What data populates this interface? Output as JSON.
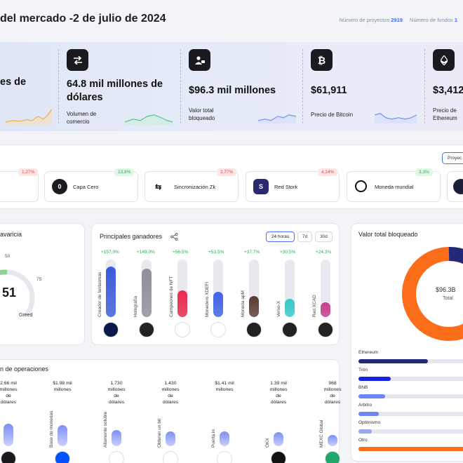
{
  "header": {
    "title": "del mercado -2 de julio de 2024",
    "projects_label": "Número de proyectos",
    "projects_count": "2919",
    "funds_label": "Número de fondos",
    "funds_count": "1"
  },
  "stats": [
    {
      "value": "es de",
      "label": "",
      "icon": "unknown",
      "spark_color": "#e9a84a"
    },
    {
      "value": "64.8 mil millones de dólares",
      "label": "Volumen de comercio",
      "icon": "swap-arrows-icon",
      "spark_color": "#3cba7a"
    },
    {
      "value": "$96.3 mil millones",
      "label": "Valor total bloqueado",
      "icon": "user-lock-icon",
      "spark_color": "#5b7cf2"
    },
    {
      "value": "$61,911",
      "label": "Precio de Bitcoin",
      "icon": "bitcoin-icon",
      "spark_color": "#5b7cf2"
    },
    {
      "value": "$3,412",
      "label": "Precio de Ethereum",
      "icon": "ethereum-icon",
      "spark_color": "#5b7cf2"
    }
  ],
  "trending": {
    "button": "Proyec",
    "coins": [
      {
        "name": "",
        "pct": "1,27%",
        "dir": "down"
      },
      {
        "name": "Capa Cero",
        "pct": "13,9%",
        "dir": "up"
      },
      {
        "name": "Sincronización Zk",
        "pct": "2,77%",
        "dir": "down"
      },
      {
        "name": "Red Stork",
        "pct": "4,24%",
        "dir": "down"
      },
      {
        "name": "Moneda mundial",
        "pct": "3,3%",
        "dir": "up"
      }
    ]
  },
  "fear_greed": {
    "title": "avaricia",
    "value": "51",
    "label": "Greed",
    "tick_50": "50",
    "tick_75": "75"
  },
  "gainers": {
    "title": "Principales ganadores",
    "timeframes": [
      "24 horas",
      "7d",
      "30d"
    ],
    "active_timeframe": "24 horas",
    "items": [
      {
        "name": "Creador de fantasmas",
        "pct": "+157,0%",
        "fill": 0.88,
        "color": "#3b5bdb"
      },
      {
        "name": "Holografía",
        "pct": "+149,0%",
        "fill": 0.84,
        "color": "#8e9096"
      },
      {
        "name": "Campeones de NFT",
        "pct": "+56,5%",
        "fill": 0.46,
        "color": "#e8284c"
      },
      {
        "name": "Monedero XDEFI",
        "pct": "+53,5%",
        "fill": 0.44,
        "color": "#3f63e6"
      },
      {
        "name": "Moneda apM",
        "pct": "+37,7%",
        "fill": 0.36,
        "color": "#5a3b33"
      },
      {
        "name": "Verso-X",
        "pct": "+30,5%",
        "fill": 0.32,
        "color": "#35c9c9"
      },
      {
        "name": "Red XCAD",
        "pct": "+24,3%",
        "fill": 0.26,
        "color": "#c93a8a"
      }
    ]
  },
  "tvl": {
    "title": "Valor total bloqueado",
    "total_value": "$96.3B",
    "total_label": "Total",
    "items": [
      {
        "name": "Ethereum",
        "value": 0.62,
        "color": "#24287a"
      },
      {
        "name": "Trón",
        "value": 0.29,
        "color": "#1523e6"
      },
      {
        "name": "BNB",
        "value": 0.24,
        "color": "#6c86f3"
      },
      {
        "name": "Arbitro",
        "value": 0.18,
        "color": "#6c86f3"
      },
      {
        "name": "Optimismo",
        "value": 0.12,
        "color": "#9aa6ee"
      },
      {
        "name": "Otro",
        "value": 1.0,
        "color": "#fb6d18"
      }
    ]
  },
  "exchanges": {
    "title": "n de operaciones",
    "items": [
      {
        "value": "2.66 mil\nmillones\nde\ndólares",
        "name": "",
        "fill": 0.7
      },
      {
        "value": "$1.98 mil\nmillones",
        "name": "Base de monedas",
        "fill": 0.65
      },
      {
        "value": "1.730\nmillones\nde\ndólares",
        "name": "Allamente soluble",
        "fill": 0.5
      },
      {
        "value": "1.430\nmillones\nde\ndólares",
        "name": "Obtener un bit",
        "fill": 0.45
      },
      {
        "value": "$1.41 mil\nmillones",
        "name": "Puerta.io",
        "fill": 0.45
      },
      {
        "value": "1.39 mil\nmillones\nde\ndólares",
        "name": "OKX",
        "fill": 0.44
      },
      {
        "value": "968\nmillones\nde\ndólares",
        "name": "MEXC Global",
        "fill": 0.35
      }
    ]
  }
}
